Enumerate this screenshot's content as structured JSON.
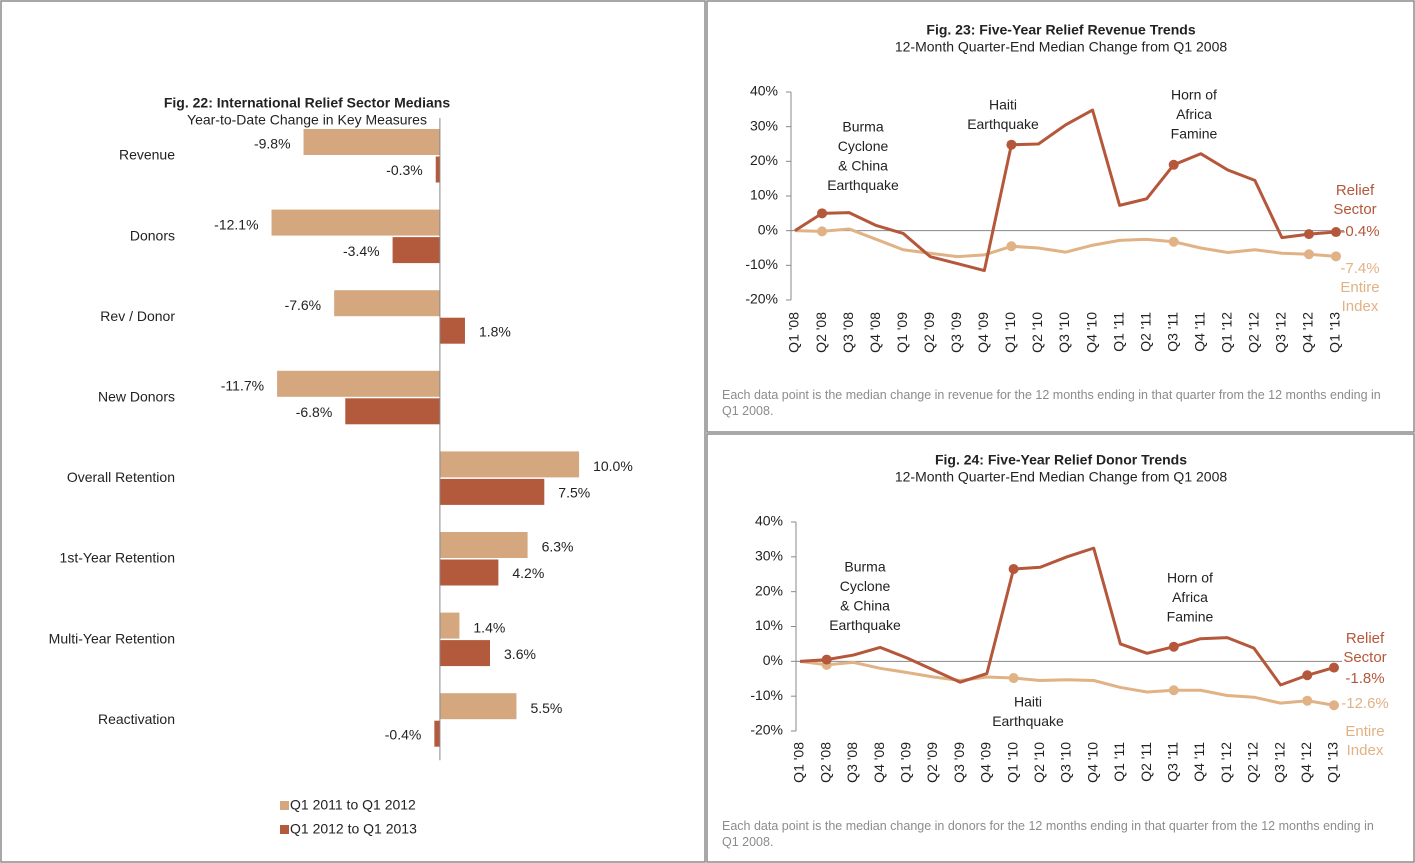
{
  "chart_data": [
    {
      "type": "hbar",
      "title": "Fig. 22: International Relief Sector Medians",
      "subtitle": "Year-to-Date Change in Key Measures",
      "categories": [
        "Revenue",
        "Donors",
        "Rev / Donor",
        "New Donors",
        "Overall Retention",
        "1st-Year Retention",
        "Multi-Year Retention",
        "Reactivation"
      ],
      "xlim": [
        -13,
        11
      ],
      "series": [
        {
          "name": "Q1 2011 to Q1 2012",
          "color": "#d4a77e",
          "values": [
            -9.8,
            -12.1,
            -7.6,
            -11.7,
            10.0,
            6.3,
            1.4,
            5.5
          ],
          "value_labels": [
            "-9.8%",
            "-12.1%",
            "-7.6%",
            "-11.7%",
            "10.0%",
            "6.3%",
            "1.4%",
            "5.5%"
          ]
        },
        {
          "name": "Q1 2012 to Q1 2013",
          "color": "#b35a3c",
          "values": [
            -0.3,
            -3.4,
            1.8,
            -6.8,
            7.5,
            4.2,
            3.6,
            -0.4
          ],
          "value_labels": [
            "-0.3%",
            "-3.4%",
            "1.8%",
            "-6.8%",
            "7.5%",
            "4.2%",
            "3.6%",
            "-0.4%"
          ]
        }
      ]
    },
    {
      "type": "line",
      "title": "Fig. 23: Five-Year Relief Revenue Trends",
      "subtitle": "12-Month Quarter-End Median Change from Q1 2008",
      "categories": [
        "Q1 '08",
        "Q2 '08",
        "Q3 '08",
        "Q4 '08",
        "Q1 '09",
        "Q2 '09",
        "Q3 '09",
        "Q4 '09",
        "Q1 '10",
        "Q2 '10",
        "Q3 '10",
        "Q4 '10",
        "Q1 '11",
        "Q2 '11",
        "Q3 '11",
        "Q4 '11",
        "Q1 '12",
        "Q2 '12",
        "Q3 '12",
        "Q4 '12",
        "Q1 '13"
      ],
      "ylim": [
        -20,
        40
      ],
      "yticks": [
        {
          "value": -20,
          "label": "-20%"
        },
        {
          "value": -10,
          "label": "-10%"
        },
        {
          "value": 0,
          "label": "0%"
        },
        {
          "value": 10,
          "label": "10%"
        },
        {
          "value": 20,
          "label": "20%"
        },
        {
          "value": 30,
          "label": "30%"
        },
        {
          "value": 40,
          "label": "40%"
        }
      ],
      "markers": [
        1,
        8,
        14,
        19,
        20
      ],
      "annotations": [
        [
          "Burma",
          "Cyclone",
          "& China",
          "Earthquake"
        ],
        [
          "Haiti",
          "Earthquake"
        ],
        [
          "Horn of",
          "Africa",
          "Famine"
        ]
      ],
      "note": "Each data point is the median change in revenue for the 12 months ending in that quarter from the 12 months ending in Q1 2008.",
      "series": [
        {
          "name": "Relief Sector",
          "color": "#b5573a",
          "values": [
            0,
            5,
            5.2,
            1.5,
            -0.8,
            -7.5,
            -9.5,
            -11.5,
            24.8,
            25,
            30.5,
            34.8,
            7.3,
            9.2,
            19,
            22.2,
            17.5,
            14.5,
            -2,
            -1,
            -0.4
          ],
          "value_labels": [
            null,
            null,
            null,
            null,
            null,
            null,
            null,
            null,
            null,
            null,
            null,
            null,
            null,
            null,
            null,
            null,
            null,
            null,
            null,
            null,
            "-0.4%"
          ]
        },
        {
          "name": "Entire Index",
          "color": "#e0b285",
          "values": [
            0,
            -0.2,
            0.5,
            -2.5,
            -5.5,
            -6.5,
            -7.5,
            -7,
            -4.5,
            -5,
            -6.2,
            -4.2,
            -2.8,
            -2.5,
            -3.2,
            -5,
            -6.3,
            -5.5,
            -6.5,
            -6.8,
            -7.4
          ],
          "value_labels": [
            null,
            null,
            null,
            null,
            null,
            null,
            null,
            null,
            null,
            null,
            null,
            null,
            null,
            null,
            null,
            null,
            null,
            null,
            null,
            null,
            "-7.4%"
          ]
        }
      ]
    },
    {
      "type": "line",
      "title": "Fig. 24: Five-Year Relief Donor Trends",
      "subtitle": "12-Month Quarter-End Median Change from Q1 2008",
      "categories": [
        "Q1 '08",
        "Q2 '08",
        "Q3 '08",
        "Q4 '08",
        "Q1 '09",
        "Q2 '09",
        "Q3 '09",
        "Q4 '09",
        "Q1 '10",
        "Q2 '10",
        "Q3 '10",
        "Q4 '10",
        "Q1 '11",
        "Q2 '11",
        "Q3 '11",
        "Q4 '11",
        "Q1 '12",
        "Q2 '12",
        "Q3 '12",
        "Q4 '12",
        "Q1 '13"
      ],
      "ylim": [
        -20,
        40
      ],
      "yticks": [
        {
          "value": -20,
          "label": "-20%"
        },
        {
          "value": -10,
          "label": "-10%"
        },
        {
          "value": 0,
          "label": "0%"
        },
        {
          "value": 10,
          "label": "10%"
        },
        {
          "value": 20,
          "label": "20%"
        },
        {
          "value": 30,
          "label": "30%"
        },
        {
          "value": 40,
          "label": "40%"
        }
      ],
      "markers": [
        1,
        8,
        14,
        19,
        20
      ],
      "annotations": [
        [
          "Burma",
          "Cyclone",
          "& China",
          "Earthquake"
        ],
        [
          "Haiti",
          "Earthquake"
        ],
        [
          "Horn of",
          "Africa",
          "Famine"
        ]
      ],
      "note": "Each data point is the median change in donors for the 12 months ending in that quarter from the 12 months ending in Q1 2008.",
      "series": [
        {
          "name": "Relief Sector",
          "color": "#b5573a",
          "values": [
            0,
            0.5,
            1.8,
            4,
            1,
            -2.5,
            -6,
            -3.5,
            26.5,
            27,
            30,
            32.5,
            5,
            2.3,
            4.2,
            6.5,
            6.8,
            3.8,
            -6.8,
            -4,
            -1.8
          ],
          "value_labels": [
            null,
            null,
            null,
            null,
            null,
            null,
            null,
            null,
            null,
            null,
            null,
            null,
            null,
            null,
            null,
            null,
            null,
            null,
            null,
            null,
            "-1.8%"
          ]
        },
        {
          "name": "Entire Index",
          "color": "#e0b285",
          "values": [
            0,
            -1,
            -0.3,
            -2,
            -3.2,
            -4.5,
            -5.5,
            -4.5,
            -4.8,
            -5.5,
            -5.3,
            -5.5,
            -7.5,
            -8.8,
            -8.3,
            -8.3,
            -9.8,
            -10.3,
            -12,
            -11.3,
            -12.6
          ],
          "value_labels": [
            null,
            null,
            null,
            null,
            null,
            null,
            null,
            null,
            null,
            null,
            null,
            null,
            null,
            null,
            null,
            null,
            null,
            null,
            null,
            null,
            "-12.6%"
          ]
        }
      ]
    }
  ]
}
